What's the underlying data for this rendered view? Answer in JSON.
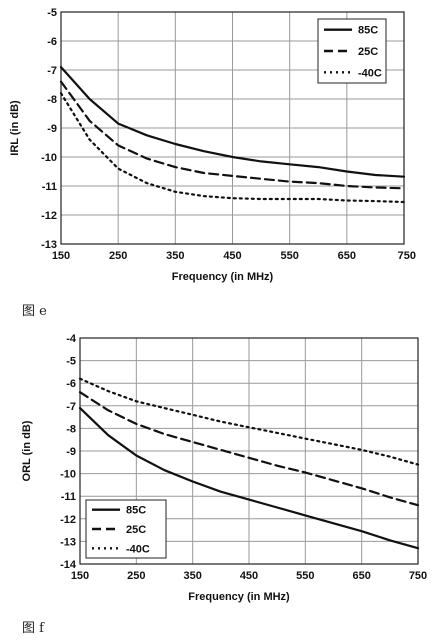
{
  "captions": {
    "e": "图 e",
    "f": "图 f"
  },
  "chart_data": [
    {
      "type": "line",
      "xlabel": "Frequency (in MHz)",
      "ylabel": "IRL (in dB)",
      "xlim": [
        150,
        750
      ],
      "ylim": [
        -13,
        -5
      ],
      "xticks": [
        150,
        250,
        350,
        450,
        550,
        650,
        750
      ],
      "xtick_labels": [
        "150",
        "250",
        "350",
        "450",
        "550",
        "650",
        "750"
      ],
      "yticks": [
        -5,
        -6,
        -7,
        -8,
        -9,
        -10,
        -11,
        -12,
        -13
      ],
      "grid": true,
      "legend_position": "top-right",
      "x": [
        150,
        200,
        250,
        300,
        350,
        400,
        450,
        500,
        550,
        600,
        650,
        700,
        750
      ],
      "series": [
        {
          "name": "85C",
          "style": "solid",
          "values": [
            -6.9,
            -8.0,
            -8.85,
            -9.25,
            -9.55,
            -9.8,
            -10.0,
            -10.15,
            -10.25,
            -10.35,
            -10.5,
            -10.62,
            -10.68
          ]
        },
        {
          "name": "25C",
          "style": "dashed",
          "values": [
            -7.4,
            -8.75,
            -9.6,
            -10.05,
            -10.35,
            -10.55,
            -10.65,
            -10.75,
            -10.85,
            -10.9,
            -11.0,
            -11.05,
            -11.08
          ]
        },
        {
          "name": "-40C",
          "style": "dotted",
          "values": [
            -7.8,
            -9.4,
            -10.4,
            -10.9,
            -11.2,
            -11.35,
            -11.42,
            -11.45,
            -11.45,
            -11.45,
            -11.5,
            -11.52,
            -11.55
          ]
        }
      ]
    },
    {
      "type": "line",
      "xlabel": "Frequency (in MHz)",
      "ylabel": "ORL (in dB)",
      "xlim": [
        150,
        750
      ],
      "ylim": [
        -14,
        -4
      ],
      "xticks": [
        150,
        250,
        350,
        450,
        550,
        650,
        750
      ],
      "xtick_labels": [
        "150",
        "250",
        "350",
        "450",
        "550",
        "650",
        "750"
      ],
      "yticks": [
        -4,
        -5,
        -6,
        -7,
        -8,
        -9,
        -10,
        -11,
        -12,
        -13,
        -14
      ],
      "grid": true,
      "legend_position": "bottom-left",
      "x": [
        150,
        200,
        250,
        300,
        350,
        400,
        450,
        500,
        550,
        600,
        650,
        700,
        750
      ],
      "series": [
        {
          "name": "85C",
          "style": "solid",
          "values": [
            -7.1,
            -8.3,
            -9.2,
            -9.85,
            -10.35,
            -10.8,
            -11.15,
            -11.5,
            -11.85,
            -12.2,
            -12.55,
            -12.95,
            -13.3
          ]
        },
        {
          "name": "25C",
          "style": "dashed",
          "values": [
            -6.4,
            -7.2,
            -7.8,
            -8.25,
            -8.6,
            -8.95,
            -9.3,
            -9.65,
            -9.95,
            -10.3,
            -10.65,
            -11.05,
            -11.4
          ]
        },
        {
          "name": "-40C",
          "style": "dotted",
          "values": [
            -5.8,
            -6.35,
            -6.8,
            -7.1,
            -7.4,
            -7.7,
            -7.95,
            -8.2,
            -8.45,
            -8.7,
            -8.95,
            -9.25,
            -9.6
          ]
        }
      ]
    }
  ]
}
